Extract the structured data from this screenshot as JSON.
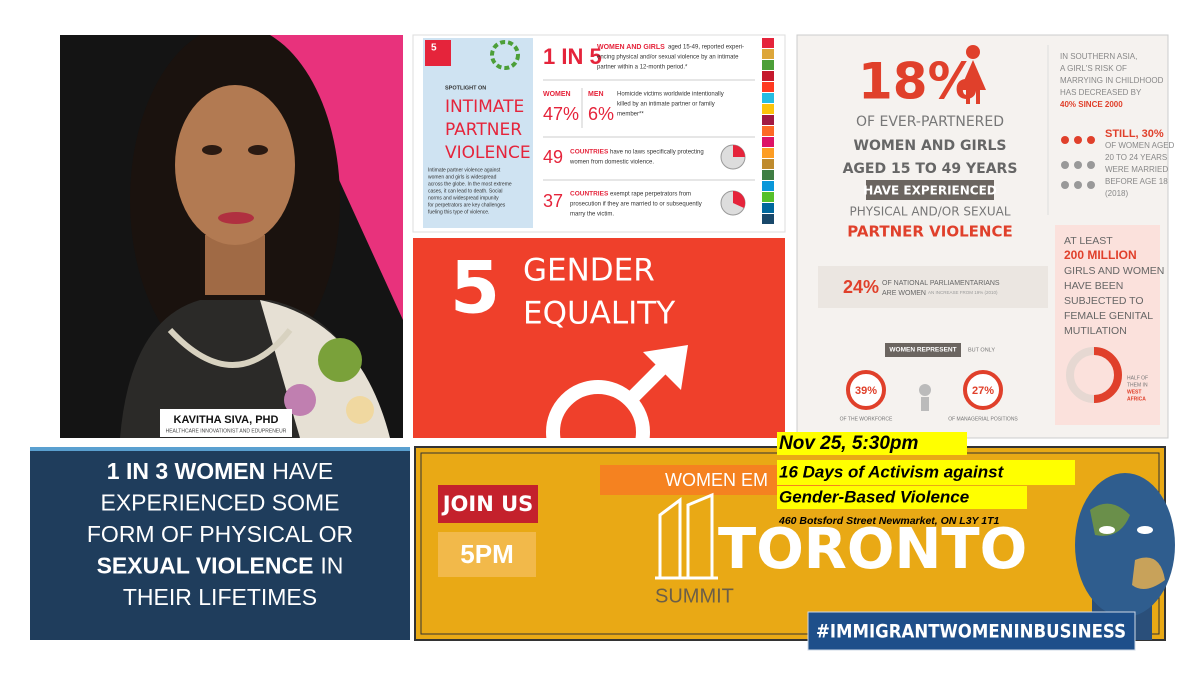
{
  "photo_panel": {
    "name": "KAVITHA SIVA, PHD",
    "role": "HEALTHCARE INNOVATIONIST AND EDUPRENEUR"
  },
  "ipv_panel": {
    "goal_number": "5",
    "spotlight": "SPOTLIGHT ON",
    "heading": [
      "INTIMATE",
      "PARTNER",
      "VIOLENCE"
    ],
    "body": [
      "Intimate partner violence against",
      "women and girls is widespread",
      "across the globe. In the most extreme",
      "cases, it can lead to death. Social",
      "norms and widespread impunity",
      "for perpetrators are key challenges",
      "fueling this type of violence."
    ],
    "stat1": {
      "figure": "1 IN 5",
      "lead": "WOMEN AND GIRLS",
      "lines": [
        "aged 15-49, reported experi-",
        "encing physical and/or sexual violence by an intimate",
        "partner within a 12-month period.*"
      ]
    },
    "stat2": {
      "women_label": "WOMEN",
      "women_value": "47%",
      "men_label": "MEN",
      "men_value": "6%",
      "lines": [
        "Homicide victims worldwide intentionally",
        "killed by an intimate partner or family",
        "member**"
      ]
    },
    "stat3": {
      "figure": "49",
      "lead": "COUNTRIES",
      "lines": [
        "have no laws specifically protecting",
        "women from domestic violence."
      ]
    },
    "stat4": {
      "figure": "37",
      "lead": "COUNTRIES",
      "lines": [
        "exempt rape perpetrators from",
        "prosecution if they are married to or subsequently",
        "marry the victim."
      ]
    }
  },
  "goal_panel": {
    "number": "5",
    "title": [
      "GENDER",
      "EQUALITY"
    ]
  },
  "facts_panel": {
    "headline": "18%",
    "lines": [
      "OF EVER-PARTNERED",
      "WOMEN AND GIRLS",
      "AGED 15 TO 49 YEARS"
    ],
    "badge": "HAVE EXPERIENCED",
    "lines2": [
      "PHYSICAL AND/OR SEXUAL",
      "PARTNER VIOLENCE"
    ],
    "asia": [
      "IN SOUTHERN ASIA,",
      "A GIRL'S RISK OF",
      "MARRYING IN CHILDHOOD",
      "HAS DECREASED BY",
      "40% SINCE 2000"
    ],
    "still": [
      "STILL, 30%",
      "OF WOMEN AGED",
      "20 TO 24 YEARS",
      "WERE MARRIED",
      "BEFORE AGE 18",
      "(2018)"
    ],
    "parliament": {
      "value": "24%",
      "text": "OF NATIONAL PARLIAMENTARIANS",
      "text2": "ARE WOMEN",
      "note": "AN INCREASE FROM 19% (2010)"
    },
    "represent": {
      "label": "WOMEN REPRESENT",
      "but": "BUT ONLY",
      "workforce_value": "39%",
      "workforce_text": "OF THE WORKFORCE",
      "managers_value": "27%",
      "managers_text": "OF MANAGERIAL POSITIONS"
    },
    "fgm": [
      "AT LEAST",
      "200 MILLION",
      "GIRLS AND WOMEN",
      "HAVE BEEN",
      "SUBJECTED TO",
      "FEMALE GENITAL",
      "MUTILATION"
    ],
    "fgm_note": [
      "HALF OF",
      "THEM IN",
      "WEST",
      "AFRICA"
    ]
  },
  "quote_panel": {
    "lines": [
      [
        "1 IN 3 WOMEN",
        "HAVE"
      ],
      [
        "EXPERIENCED SOME"
      ],
      [
        "FORM OF PHYSICAL OR"
      ],
      [
        "SEXUAL VIOLENCE",
        "IN"
      ],
      [
        "THEIR LIFETIMES"
      ]
    ]
  },
  "event_panel": {
    "join": "JOIN US",
    "time": "5PM",
    "banner": "WOMEN EM",
    "city": "TORONTO",
    "summit": "SUMMIT"
  },
  "event_details": {
    "date": "Nov 25, 5:30pm",
    "title": [
      "16 Days of Activism against",
      "Gender-Based Violence"
    ],
    "address": "460 Botsford Street Newmarket, ON L3Y 1T1"
  },
  "hashtag": "#IMMIGRANTWOMENINBUSINESS"
}
